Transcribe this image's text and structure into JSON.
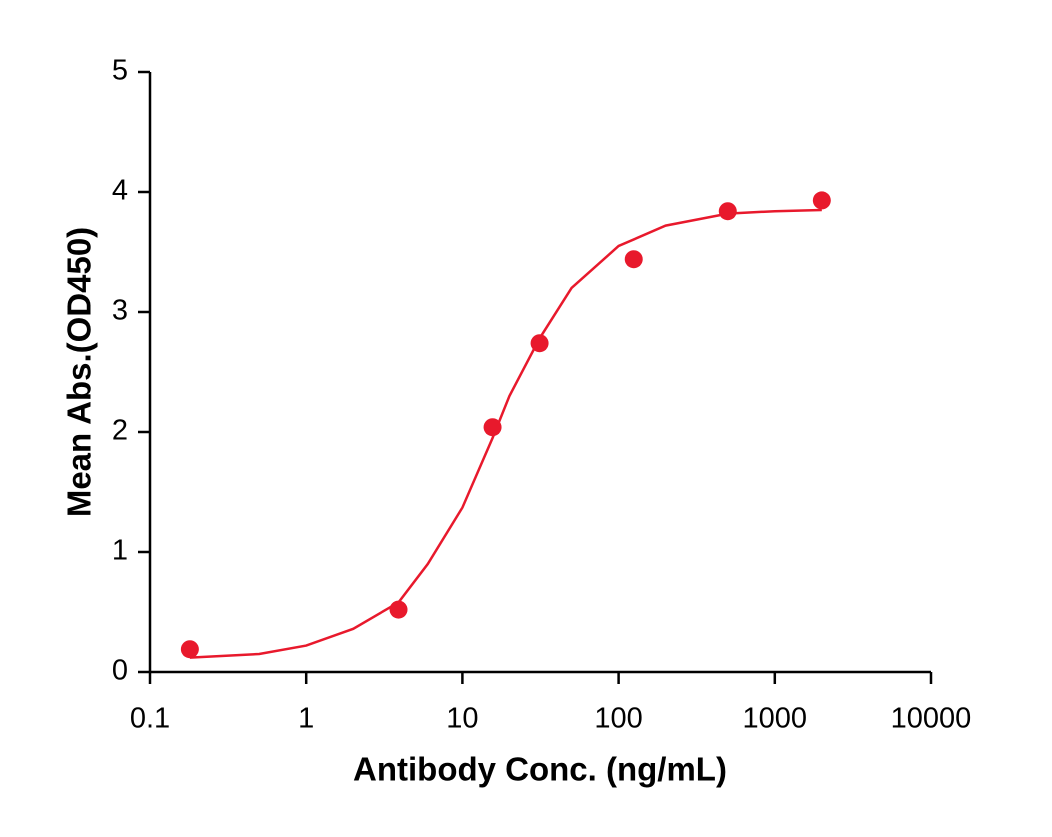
{
  "chart_data": {
    "type": "scatter",
    "x_label": "Antibody Conc. (ng/mL)",
    "y_label": "Mean Abs.(OD450)",
    "xscale": "log",
    "xlim": [
      0.1,
      10000
    ],
    "xticks": [
      0.1,
      1,
      10,
      100,
      1000,
      10000
    ],
    "ylim": [
      0,
      5
    ],
    "yticks": [
      0,
      1,
      2,
      3,
      4,
      5
    ],
    "series": [
      {
        "style": "points",
        "color": "#e8192c",
        "x": [
          0.18,
          3.9,
          15.6,
          31.2,
          125,
          500,
          2000
        ],
        "values": [
          0.19,
          0.52,
          2.04,
          2.74,
          3.44,
          3.84,
          3.93
        ]
      },
      {
        "style": "line",
        "color": "#e8192c",
        "x": [
          0.18,
          0.5,
          1,
          2,
          3.9,
          6,
          10,
          15.6,
          20,
          31.2,
          50,
          100,
          200,
          500,
          1000,
          2000
        ],
        "values": [
          0.12,
          0.15,
          0.22,
          0.36,
          0.58,
          0.9,
          1.37,
          1.95,
          2.3,
          2.78,
          3.2,
          3.55,
          3.72,
          3.82,
          3.84,
          3.85
        ]
      }
    ]
  }
}
